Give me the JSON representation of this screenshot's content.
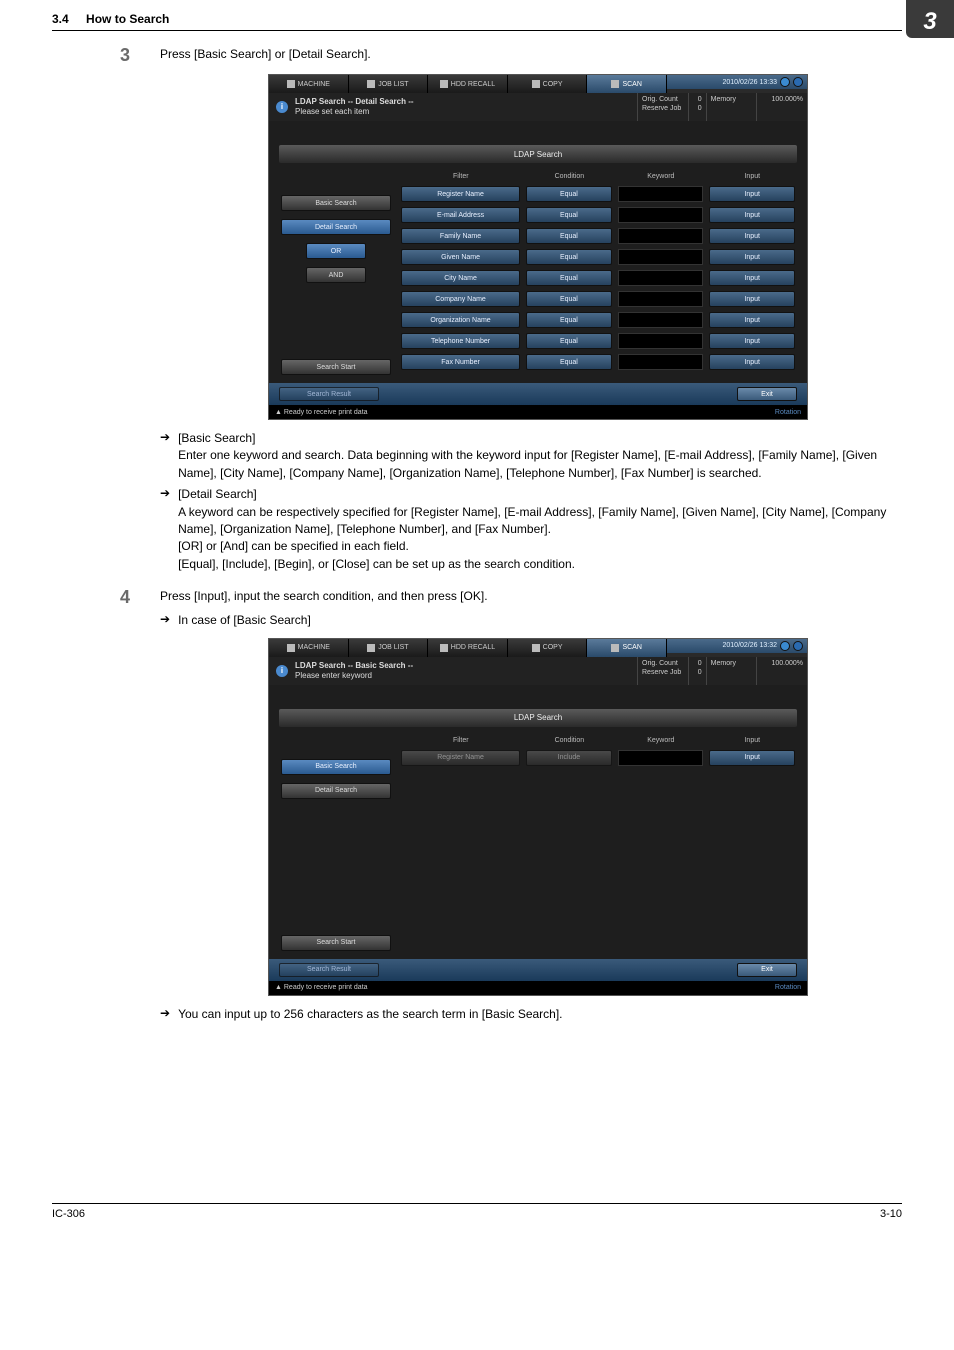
{
  "header": {
    "section_num": "3.4",
    "section_title": "How to Search",
    "chapter": "3"
  },
  "step3": {
    "num": "3",
    "text": "Press [Basic Search] or [Detail Search].",
    "bullets": [
      {
        "title": "[Basic Search]",
        "body": "Enter one keyword and search.  Data beginning with the keyword input for [Register Name], [E-mail Address], [Family Name], [Given Name], [City Name], [Company Name], [Organization Name], [Telephone Number], [Fax Number] is searched."
      },
      {
        "title": "[Detail Search]",
        "body": "A keyword can be respectively specified for [Register Name], [E-mail Address], [Family Name], [Given Name], [City Name], [Company Name], [Organization Name], [Telephone Number], and [Fax Number].\n[OR] or [And] can be specified in each field.\n[Equal], [Include], [Begin], or [Close] can be set up as the search condition."
      }
    ]
  },
  "step4": {
    "num": "4",
    "text": "Press [Input], input the search condition, and then press [OK].",
    "sub": "In case of [Basic Search]",
    "note": "You can input up to 256 characters as the search term in [Basic Search]."
  },
  "shot1": {
    "tabs": [
      "MACHINE",
      "JOB LIST",
      "HDD RECALL",
      "COPY",
      "SCAN"
    ],
    "date": "2010/02/26 13:33",
    "info_title": "LDAP Search -- Detail Search --",
    "info_sub": "Please set each item",
    "orig": "Orig. Count",
    "orig_v": "0",
    "reserve": "Reserve Job",
    "reserve_v": "0",
    "mem": "Memory",
    "mem_v": "100.000%",
    "titlebar": "LDAP Search",
    "left_btns": [
      "Basic Search",
      "Detail Search",
      "OR",
      "AND",
      "Search Start"
    ],
    "head": {
      "f": "Filter",
      "c": "Condition",
      "k": "Keyword",
      "i": "Input"
    },
    "rows": [
      {
        "f": "Register Name",
        "c": "Equal",
        "i": "Input"
      },
      {
        "f": "E-mail Address",
        "c": "Equal",
        "i": "Input"
      },
      {
        "f": "Family Name",
        "c": "Equal",
        "i": "Input"
      },
      {
        "f": "Given Name",
        "c": "Equal",
        "i": "Input"
      },
      {
        "f": "City Name",
        "c": "Equal",
        "i": "Input"
      },
      {
        "f": "Company Name",
        "c": "Equal",
        "i": "Input"
      },
      {
        "f": "Organization Name",
        "c": "Equal",
        "i": "Input"
      },
      {
        "f": "Telephone Number",
        "c": "Equal",
        "i": "Input"
      },
      {
        "f": "Fax Number",
        "c": "Equal",
        "i": "Input"
      }
    ],
    "search_result": "Search Result",
    "exit": "Exit",
    "status": "Ready to receive print data",
    "rotation": "Rotation"
  },
  "shot2": {
    "tabs": [
      "MACHINE",
      "JOB LIST",
      "HDD RECALL",
      "COPY",
      "SCAN"
    ],
    "date": "2010/02/26 13:32",
    "info_title": "LDAP Search -- Basic Search --",
    "info_sub": "Please enter keyword",
    "orig": "Orig. Count",
    "orig_v": "0",
    "reserve": "Reserve Job",
    "reserve_v": "0",
    "mem": "Memory",
    "mem_v": "100.000%",
    "titlebar": "LDAP Search",
    "left_btns": [
      "Basic Search",
      "Detail Search",
      "Search Start"
    ],
    "head": {
      "f": "Filter",
      "c": "Condition",
      "k": "Keyword",
      "i": "Input"
    },
    "row": {
      "f": "Register Name",
      "c": "Include",
      "i": "Input"
    },
    "search_result": "Search Result",
    "exit": "Exit",
    "status": "Ready to receive print data",
    "rotation": "Rotation"
  },
  "footer": {
    "left": "IC-306",
    "right": "3-10"
  }
}
